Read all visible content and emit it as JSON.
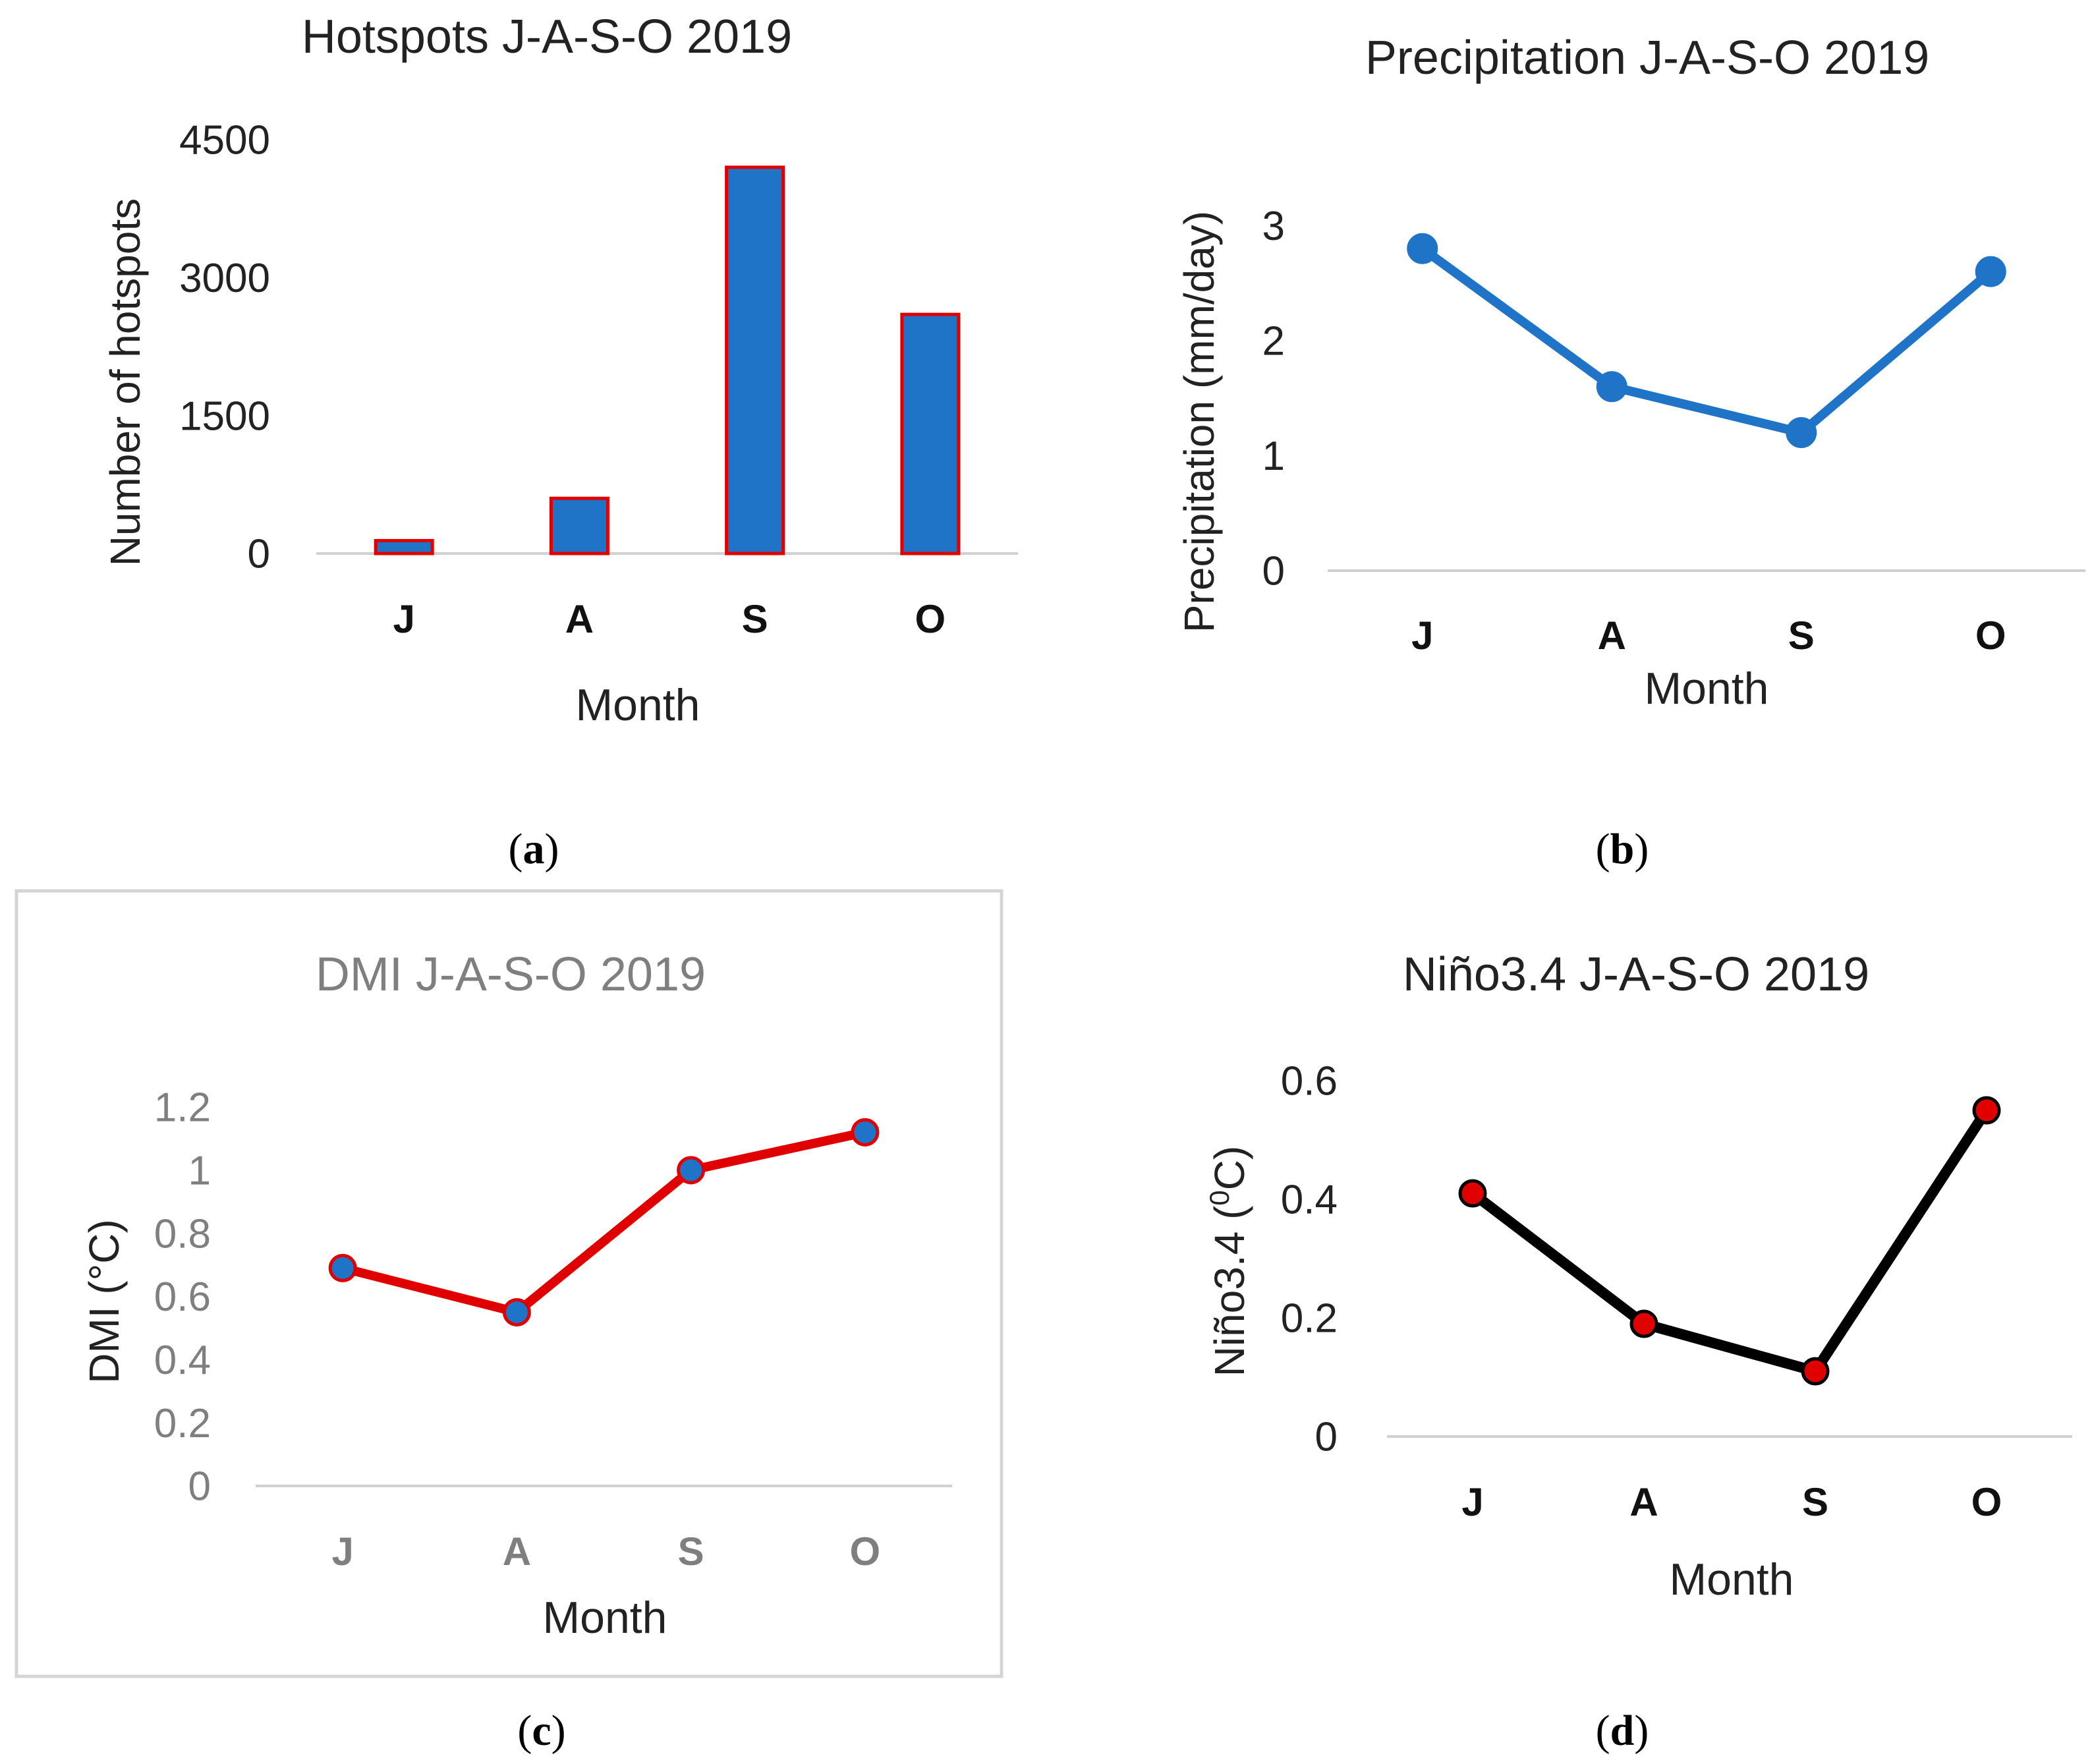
{
  "chart_data": [
    {
      "id": "a",
      "type": "bar",
      "title": "Hotspots J-A-S-O 2019",
      "xlabel": "Month",
      "ylabel": "Number of hotspots",
      "categories": [
        "J",
        "A",
        "S",
        "O"
      ],
      "values": [
        140,
        600,
        4200,
        2600
      ],
      "ylim": [
        0,
        4500
      ],
      "yticks": [
        0,
        1500,
        3000,
        4500
      ],
      "ytick_labels": [
        "0",
        "1500",
        "3000",
        "4500"
      ],
      "fill_color": "#1f74c8",
      "edge_color": "#e00000",
      "panel_label": "a",
      "grid": false
    },
    {
      "id": "b",
      "type": "line",
      "title": "Precipitation J-A-S-O 2019",
      "xlabel": "Month",
      "ylabel": "Precipitation (mm/day)",
      "categories": [
        "J",
        "A",
        "S",
        "O"
      ],
      "values": [
        2.8,
        1.6,
        1.2,
        2.6
      ],
      "ylim": [
        0,
        3.3
      ],
      "yticks": [
        0,
        1,
        2,
        3
      ],
      "ytick_labels": [
        "0",
        "1",
        "2",
        "3"
      ],
      "line_color": "#1f74c8",
      "marker_color": "#1f74c8",
      "marker_edge": "#1f74c8",
      "panel_label": "b",
      "grid": false
    },
    {
      "id": "c",
      "type": "line",
      "title": "DMI J-A-S-O 2019",
      "xlabel": "Month",
      "ylabel": "DMI (°C)",
      "categories": [
        "J",
        "A",
        "S",
        "O"
      ],
      "values": [
        0.69,
        0.55,
        1.0,
        1.12
      ],
      "ylim": [
        0,
        1.2
      ],
      "yticks": [
        0,
        0.2,
        0.4,
        0.6,
        0.8,
        1,
        1.2
      ],
      "ytick_labels": [
        "0",
        "0.2",
        "0.4",
        "0.6",
        "0.8",
        "1",
        "1.2"
      ],
      "line_color": "#e00000",
      "marker_color": "#1f74c8",
      "marker_edge": "#e00000",
      "panel_label": "c",
      "grid": false
    },
    {
      "id": "d",
      "type": "line",
      "title": "Niño3.4 J-A-S-O 2019",
      "xlabel": "Month",
      "ylabel_main": "Niño3.4 (",
      "ylabel_sup": "0",
      "ylabel_end": "C)",
      "categories": [
        "J",
        "A",
        "S",
        "O"
      ],
      "values": [
        0.41,
        0.19,
        0.11,
        0.55
      ],
      "ylim": [
        0,
        0.6
      ],
      "yticks": [
        0,
        0.2,
        0.4,
        0.6
      ],
      "ytick_labels": [
        "0",
        "0.2",
        "0.4",
        "0.6"
      ],
      "line_color": "#000000",
      "marker_color": "#e00000",
      "marker_edge": "#000000",
      "panel_label": "d",
      "grid": false
    }
  ]
}
